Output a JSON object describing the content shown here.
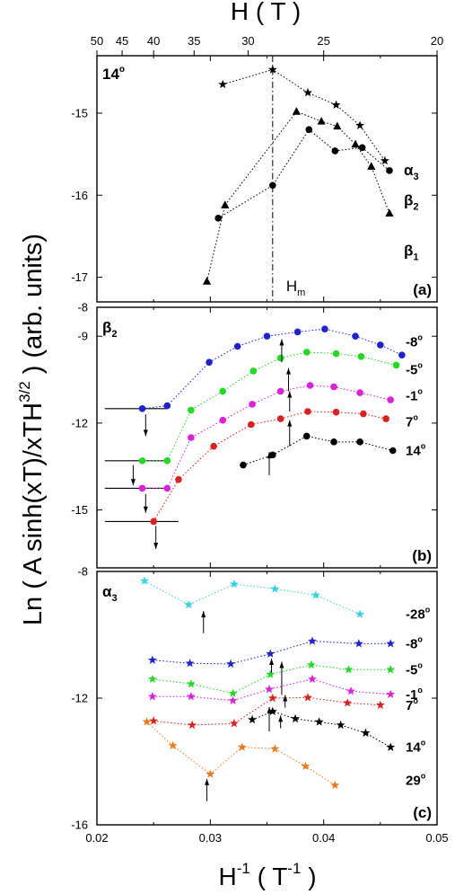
{
  "chart_data": {
    "type": "scatter",
    "ylabel_main": "Ln ( A sinh(xT)/xTH",
    "ylabel_sup": "3/2",
    "ylabel_tail": " ) (arb. units)",
    "xlabel_main": "H",
    "xlabel_sup": "-1",
    "xlabel_paren_open": " ( T",
    "xlabel_unit_sup": "-1",
    "xlabel_paren_close": " )",
    "top_axis_label": "H ( T )",
    "top_ticks": [
      {
        "label": "50",
        "value": 50
      },
      {
        "label": "45",
        "value": 45
      },
      {
        "label": "40",
        "value": 40
      },
      {
        "label": "35",
        "value": 35
      },
      {
        "label": "30",
        "value": 30
      },
      {
        "label": "25",
        "value": 25
      },
      {
        "label": "20",
        "value": 20
      }
    ],
    "xlim": [
      0.02,
      0.05
    ],
    "x_ticks": [
      {
        "label": "0.02",
        "value": 0.02
      },
      {
        "label": "0.03",
        "value": 0.03
      },
      {
        "label": "0.04",
        "value": 0.04
      },
      {
        "label": "0.05",
        "value": 0.05
      }
    ],
    "panels": [
      {
        "id": "a",
        "panel_label": "(a)",
        "corner_label": "14",
        "ylim": [
          -17.3,
          -14.3
        ],
        "y_ticks": [
          {
            "label": "-15",
            "value": -15
          },
          {
            "label": "-16",
            "value": -16
          },
          {
            "label": "-17",
            "value": -17
          }
        ],
        "vline": {
          "x": 0.0355,
          "label_main": "H",
          "label_sub": "m"
        },
        "series": [
          {
            "marker": "star",
            "color": "#000000",
            "x": [
              0.0311,
              0.0355,
              0.0386,
              0.0411,
              0.0432,
              0.0454
            ],
            "y": [
              -14.65,
              -14.47,
              -14.75,
              -14.9,
              -15.15,
              -15.58
            ]
          },
          {
            "marker": "circle",
            "color": "#000000",
            "x": [
              0.0307,
              0.0355,
              0.0387,
              0.041,
              0.0434,
              0.0458
            ],
            "y": [
              -16.28,
              -15.88,
              -15.2,
              -15.46,
              -15.42,
              -15.7
            ]
          },
          {
            "marker": "triangle",
            "color": "#000000",
            "x": [
              0.0297,
              0.0313,
              0.0376,
              0.0398,
              0.0412,
              0.0428,
              0.0442,
              0.0458
            ],
            "y": [
              -17.05,
              -16.12,
              -14.98,
              -15.1,
              -15.16,
              -15.38,
              -15.65,
              -16.22
            ]
          }
        ],
        "right_labels": [
          {
            "main": "α",
            "sub": "3",
            "y": -15.7
          },
          {
            "main": "β",
            "sub": "2",
            "y": -16.07
          },
          {
            "main": "β",
            "sub": "1",
            "y": -16.68
          }
        ]
      },
      {
        "id": "b",
        "panel_label": "(b)",
        "corner_main": "β",
        "corner_sub": "2",
        "ylim": [
          -17,
          -8
        ],
        "y_ticks": [
          {
            "label": "-8",
            "value": -8
          },
          {
            "label": "-9",
            "value": -9
          },
          {
            "label": "-12",
            "value": -12
          },
          {
            "label": "-15",
            "value": -15
          }
        ],
        "series": [
          {
            "name": "-8",
            "marker": "circle",
            "color": "#1f1fd6",
            "x": [
              0.024,
              0.0262,
              0.0299,
              0.0324,
              0.035,
              0.0377,
              0.0401,
              0.0428,
              0.045,
              0.0469
            ],
            "y": [
              -11.5,
              -11.4,
              -9.9,
              -9.35,
              -9.0,
              -8.85,
              -8.75,
              -9.0,
              -9.3,
              -9.65
            ]
          },
          {
            "name": "-5",
            "marker": "circle",
            "color": "#1fdc1f",
            "x": [
              0.024,
              0.0262,
              0.0283,
              0.0311,
              0.0338,
              0.0362,
              0.0385,
              0.0411,
              0.0433,
              0.0464
            ],
            "y": [
              -13.3,
              -13.3,
              -11.55,
              -10.9,
              -10.2,
              -9.75,
              -9.55,
              -9.6,
              -9.7,
              -10.0
            ]
          },
          {
            "name": "-1",
            "marker": "circle",
            "color": "#e01ee0",
            "x": [
              0.024,
              0.0262,
              0.0283,
              0.0311,
              0.0337,
              0.0362,
              0.0388,
              0.0409,
              0.0432,
              0.0459
            ],
            "y": [
              -14.25,
              -14.25,
              -12.5,
              -11.9,
              -11.35,
              -10.9,
              -10.7,
              -10.75,
              -10.95,
              -11.2
            ]
          },
          {
            "name": "7",
            "marker": "circle",
            "color": "#e01e1e",
            "x": [
              0.025,
              0.0272,
              0.0303,
              0.0336,
              0.0362,
              0.0386,
              0.0411,
              0.0435,
              0.0455
            ],
            "y": [
              -15.4,
              -13.95,
              -12.8,
              -12.05,
              -11.85,
              -11.6,
              -11.62,
              -11.68,
              -11.85
            ]
          },
          {
            "name": "14",
            "marker": "circle",
            "color": "#000000",
            "x": [
              0.0329,
              0.0355,
              0.0385,
              0.0409,
              0.0432,
              0.0461
            ],
            "y": [
              -13.45,
              -13.1,
              -12.45,
              -12.65,
              -12.65,
              -12.95
            ]
          }
        ],
        "right_labels": [
          {
            "main": "-8",
            "y": -9.2
          },
          {
            "main": "-5",
            "y": -10.15
          },
          {
            "main": "-1",
            "y": -11.05
          },
          {
            "main": "7",
            "y": -11.95
          },
          {
            "main": "14",
            "y": -12.95
          }
        ],
        "hlines": [
          {
            "y": -11.5,
            "x0": 0.0207,
            "x1": 0.0262
          },
          {
            "y": -13.3,
            "x0": 0.0207,
            "x1": 0.0262
          },
          {
            "y": -14.25,
            "x0": 0.0207,
            "x1": 0.0262
          },
          {
            "y": -15.4,
            "x0": 0.0207,
            "x1": 0.0272
          }
        ],
        "arrows": [
          {
            "x": 0.0243,
            "y_from": -11.7,
            "y_to": -12.45
          },
          {
            "x": 0.0232,
            "y_from": -13.45,
            "y_to": -14.15
          },
          {
            "x": 0.0243,
            "y_from": -14.45,
            "y_to": -15.1
          },
          {
            "x": 0.0252,
            "y_from": -15.55,
            "y_to": -16.35
          },
          {
            "x": 0.0352,
            "y_from": -13.8,
            "y_to": -13.0
          },
          {
            "x": 0.037,
            "y_from": -12.8,
            "y_to": -11.9
          },
          {
            "x": 0.0363,
            "y_from": -9.9,
            "y_to": -9.1
          },
          {
            "x": 0.0369,
            "y_from": -10.9,
            "y_to": -10.1
          },
          {
            "x": 0.037,
            "y_from": -11.6,
            "y_to": -10.9
          }
        ]
      },
      {
        "id": "c",
        "panel_label": "(c)",
        "corner_main": "α",
        "corner_sub": "3",
        "ylim": [
          -16,
          -8
        ],
        "y_ticks": [
          {
            "label": "-8",
            "value": -8
          },
          {
            "label": "-12",
            "value": -12
          },
          {
            "label": "-16",
            "value": -16
          }
        ],
        "series": [
          {
            "name": "-28",
            "marker": "star",
            "color": "#2fd6e0",
            "x": [
              0.0242,
              0.0281,
              0.0321,
              0.0357,
              0.0393,
              0.0432
            ],
            "y": [
              -8.3,
              -9.05,
              -8.4,
              -8.55,
              -8.75,
              -9.35
            ]
          },
          {
            "name": "-8",
            "marker": "star",
            "color": "#1f1fd6",
            "x": [
              0.0249,
              0.0282,
              0.0318,
              0.0353,
              0.039,
              0.0431,
              0.0459
            ],
            "y": [
              -10.8,
              -10.9,
              -10.92,
              -10.6,
              -10.2,
              -10.28,
              -10.28
            ]
          },
          {
            "name": "-5",
            "marker": "star",
            "color": "#1fdc1f",
            "x": [
              0.0249,
              0.0283,
              0.032,
              0.0353,
              0.0389,
              0.0422,
              0.0459
            ],
            "y": [
              -11.4,
              -11.55,
              -11.85,
              -11.25,
              -10.95,
              -11.1,
              -11.1
            ]
          },
          {
            "name": "-1",
            "marker": "star",
            "color": "#e01ee0",
            "x": [
              0.0249,
              0.0283,
              0.032,
              0.0352,
              0.039,
              0.0424,
              0.0459
            ],
            "y": [
              -11.95,
              -11.95,
              -12.08,
              -11.72,
              -11.4,
              -11.78,
              -11.88
            ]
          },
          {
            "name": "7",
            "marker": "star",
            "color": "#e01e1e",
            "x": [
              0.025,
              0.0284,
              0.0321,
              0.0355,
              0.0386,
              0.0421,
              0.045
            ],
            "y": [
              -12.72,
              -12.85,
              -12.8,
              -12.0,
              -11.98,
              -12.15,
              -12.22
            ]
          },
          {
            "name": "14",
            "marker": "star",
            "color": "#000000",
            "x": [
              0.0337,
              0.0355,
              0.0375,
              0.0396,
              0.0415,
              0.0437,
              0.0459
            ],
            "y": [
              -12.68,
              -12.42,
              -12.65,
              -12.75,
              -12.85,
              -13.1,
              -13.55
            ]
          },
          {
            "name": "29",
            "marker": "star",
            "color": "#f07a1a",
            "x": [
              0.0244,
              0.0267,
              0.03,
              0.0328,
              0.0357,
              0.0384,
              0.041
            ],
            "y": [
              -12.75,
              -13.5,
              -14.4,
              -13.55,
              -13.6,
              -14.15,
              -14.75
            ]
          }
        ],
        "right_labels": [
          {
            "main": "-28",
            "y": -9.35
          },
          {
            "main": "-8",
            "y": -10.28
          },
          {
            "main": "-5",
            "y": -11.1
          },
          {
            "main": "-1",
            "y": -11.88
          },
          {
            "main": "7",
            "y": -12.22
          },
          {
            "main": "14",
            "y": -13.55
          },
          {
            "main": "29",
            "y": -14.6
          }
        ],
        "arrows": [
          {
            "x": 0.0294,
            "y_from": -9.95,
            "y_to": -9.25
          },
          {
            "x": 0.0354,
            "y_from": -11.2,
            "y_to": -10.75
          },
          {
            "x": 0.0363,
            "y_from": -11.9,
            "y_to": -10.85
          },
          {
            "x": 0.0366,
            "y_from": -12.3,
            "y_to": -11.9
          },
          {
            "x": 0.0352,
            "y_from": -13.05,
            "y_to": -12.28
          },
          {
            "x": 0.0362,
            "y_from": -12.95,
            "y_to": -12.55
          },
          {
            "x": 0.0297,
            "y_from": -15.25,
            "y_to": -14.55
          }
        ]
      }
    ]
  }
}
